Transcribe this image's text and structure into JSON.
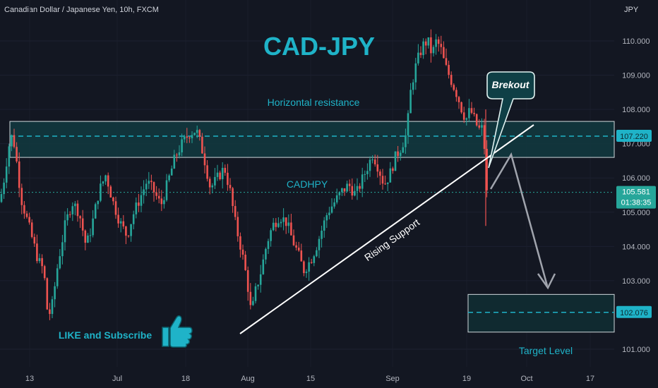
{
  "header": {
    "symbol_line": "Canadian Dollar / Japanese Yen, 10h, FXCM",
    "currency": "JPY"
  },
  "colors": {
    "background": "#131722",
    "up": "#26a69a",
    "down": "#ef5350",
    "accent": "#1fb3c8",
    "zone_fill": "#123a40",
    "axis_text": "#b2b5be"
  },
  "chart_data": {
    "type": "candlestick",
    "title": "CAD-JPY",
    "symbol": "Canadian Dollar / Japanese Yen",
    "interval": "10h",
    "source": "FXCM",
    "y_unit": "JPY",
    "ylim": [
      100.7,
      110.9
    ],
    "y_ticks": [
      "110.000",
      "109.000",
      "108.000",
      "107.000",
      "106.000",
      "105.000",
      "104.000",
      "103.000",
      "101.000"
    ],
    "y_tick_values": [
      110,
      109,
      108,
      107,
      106,
      105,
      104,
      103,
      101
    ],
    "x_ticks": [
      "13",
      "Jul",
      "18",
      "Aug",
      "15",
      "Sep",
      "19",
      "Oct",
      "17"
    ],
    "current_price": "105.581",
    "countdown": "01:38:35",
    "resistance_level": "107.220",
    "target_price": "102.076",
    "resistance_zone": [
      106.6,
      107.65
    ],
    "target_zone": [
      101.5,
      102.6
    ],
    "annotations": {
      "title": "CAD-JPY",
      "horizontal": "Horizontal resistance",
      "cadhpy": "CADHPY",
      "rising": "Rising Support",
      "breakout": "Brekout",
      "like": "LIKE and Subscribe",
      "target": "Target Level"
    },
    "price_path": [
      [
        0,
        105.3
      ],
      [
        6,
        106.0
      ],
      [
        12,
        106.9
      ],
      [
        18,
        107.3
      ],
      [
        24,
        106.4
      ],
      [
        30,
        105.4
      ],
      [
        38,
        104.8
      ],
      [
        46,
        104.2
      ],
      [
        54,
        103.6
      ],
      [
        62,
        103.3
      ],
      [
        68,
        101.9
      ],
      [
        74,
        102.3
      ],
      [
        82,
        103.5
      ],
      [
        92,
        104.6
      ],
      [
        102,
        105.3
      ],
      [
        112,
        105.0
      ],
      [
        122,
        104.0
      ],
      [
        130,
        104.6
      ],
      [
        140,
        105.6
      ],
      [
        150,
        106.1
      ],
      [
        160,
        105.3
      ],
      [
        170,
        104.7
      ],
      [
        180,
        104.3
      ],
      [
        188,
        104.9
      ],
      [
        198,
        105.4
      ],
      [
        208,
        105.9
      ],
      [
        218,
        105.6
      ],
      [
        228,
        105.2
      ],
      [
        238,
        105.9
      ],
      [
        248,
        106.6
      ],
      [
        258,
        107.0
      ],
      [
        268,
        107.3
      ],
      [
        278,
        107.4
      ],
      [
        288,
        106.7
      ],
      [
        298,
        105.7
      ],
      [
        308,
        106.0
      ],
      [
        318,
        106.3
      ],
      [
        326,
        105.6
      ],
      [
        334,
        104.6
      ],
      [
        342,
        103.9
      ],
      [
        350,
        103.0
      ],
      [
        356,
        102.0
      ],
      [
        362,
        102.7
      ],
      [
        370,
        103.3
      ],
      [
        378,
        104.1
      ],
      [
        386,
        104.6
      ],
      [
        396,
        104.9
      ],
      [
        406,
        104.7
      ],
      [
        414,
        104.2
      ],
      [
        422,
        103.8
      ],
      [
        430,
        103.3
      ],
      [
        440,
        103.6
      ],
      [
        448,
        104.0
      ],
      [
        456,
        104.5
      ],
      [
        464,
        105.0
      ],
      [
        474,
        105.3
      ],
      [
        484,
        105.6
      ],
      [
        494,
        105.8
      ],
      [
        504,
        105.5
      ],
      [
        512,
        105.9
      ],
      [
        520,
        106.3
      ],
      [
        528,
        106.7
      ],
      [
        536,
        106.3
      ],
      [
        544,
        105.8
      ],
      [
        552,
        106.1
      ],
      [
        560,
        106.6
      ],
      [
        568,
        106.9
      ],
      [
        576,
        107.3
      ],
      [
        582,
        108.6
      ],
      [
        588,
        109.2
      ],
      [
        594,
        109.6
      ],
      [
        600,
        109.9
      ],
      [
        606,
        110.0
      ],
      [
        612,
        109.6
      ],
      [
        618,
        110.0
      ],
      [
        624,
        109.8
      ],
      [
        630,
        109.3
      ],
      [
        636,
        109.0
      ],
      [
        642,
        108.7
      ],
      [
        648,
        108.4
      ],
      [
        654,
        108.0
      ],
      [
        660,
        107.7
      ],
      [
        666,
        108.0
      ],
      [
        672,
        107.7
      ],
      [
        678,
        107.4
      ],
      [
        682,
        107.5
      ],
      [
        686,
        106.9
      ],
      [
        690,
        105.4
      ],
      [
        694,
        105.6
      ]
    ]
  }
}
